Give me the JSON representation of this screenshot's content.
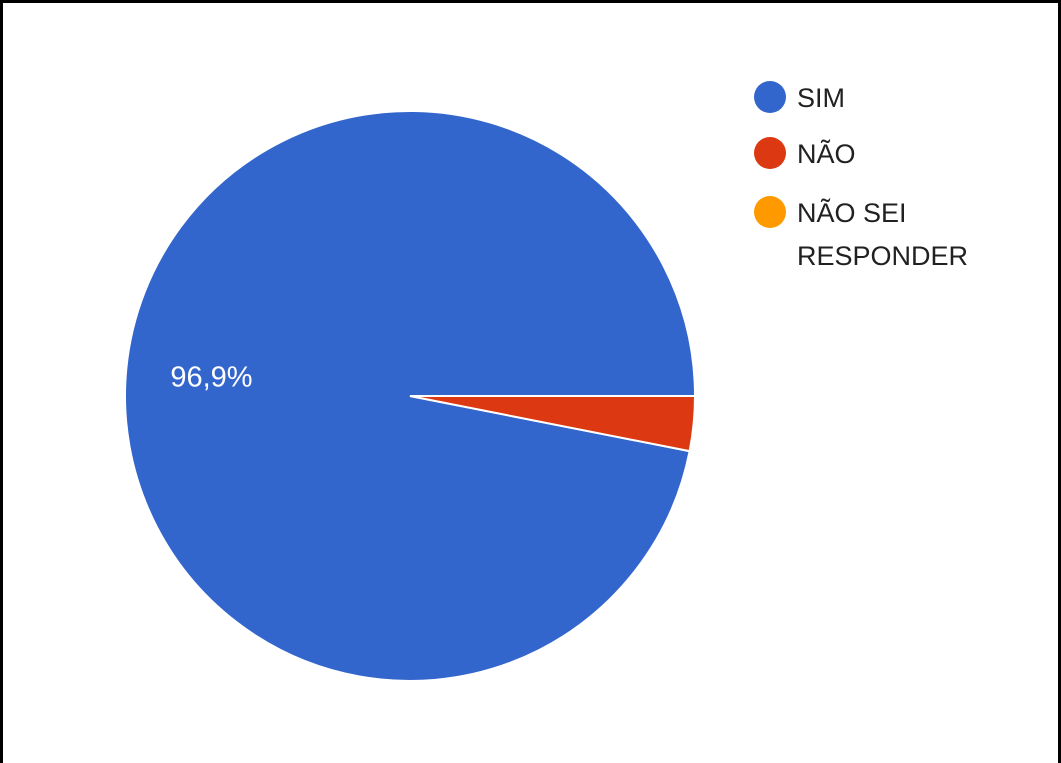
{
  "chart_data": {
    "type": "pie",
    "categories": [
      "SIM",
      "NÃO",
      "NÃO SEI RESPONDER"
    ],
    "values": [
      96.9,
      3.1,
      0
    ],
    "data_labels": [
      "96,9%",
      "",
      ""
    ],
    "colors": [
      "#3366cc",
      "#dc3912",
      "#ff9900"
    ],
    "legend": {
      "position": "right",
      "entries": [
        {
          "lines": [
            "SIM"
          ],
          "color": "#3366cc"
        },
        {
          "lines": [
            "NÃO"
          ],
          "color": "#dc3912"
        },
        {
          "lines": [
            "NÃO SEI",
            "RESPONDER"
          ],
          "color": "#ff9900"
        }
      ]
    }
  }
}
